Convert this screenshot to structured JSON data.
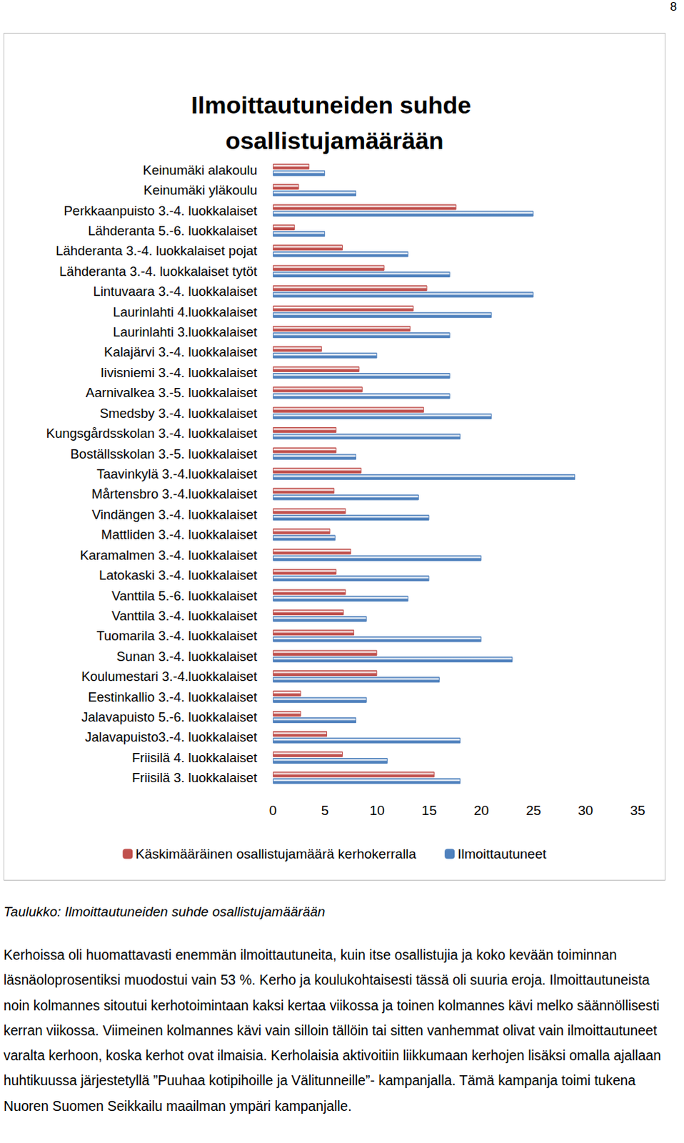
{
  "page_number": "8",
  "chart_data": {
    "type": "bar",
    "orientation": "horizontal",
    "title": "Ilmoittautuneiden suhde osallistujamäärään",
    "categories": [
      "Keinumäki alakoulu",
      "Keinumäki yläkoulu",
      "Perkkaanpuisto 3.-4. luokkalaiset",
      "Lähderanta 5.-6. luokkalaiset",
      "Lähderanta 3.-4. luokkalaiset pojat",
      "Lähderanta 3.-4. luokkalaiset tytöt",
      "Lintuvaara 3.-4. luokkalaiset",
      "Laurinlahti 4.luokkalaiset",
      "Laurinlahti 3.luokkalaiset",
      "Kalajärvi 3.-4. luokkalaiset",
      "Iivisniemi 3.-4. luokkalaiset",
      "Aarnivalkea 3.-5. luokkalaiset",
      "Smedsby 3.-4. luokkalaiset",
      "Kungsgårdsskolan 3.-4. luokkalaiset",
      "Boställsskolan 3.-5. luokkalaiset",
      "Taavinkylä 3.-4.luokkalaiset",
      "Mårtensbro 3.-4.luokkalaiset",
      "Vindängen 3.-4. luokkalaiset",
      "Mattliden 3.-4. luokkalaiset",
      "Karamalmen 3.-4. luokkalaiset",
      "Latokaski 3.-4. luokkalaiset",
      "Vanttila 5.-6. luokkalaiset",
      "Vanttila 3.-4. luokkalaiset",
      "Tuomarila 3.-4. luokkalaiset",
      "Sunan 3.-4. luokkalaiset",
      "Koulumestari 3.-4.luokkalaiset",
      "Eestinkallio 3.-4. luokkalaiset",
      "Jalavapuisto 5.-6. luokkalaiset",
      "Jalavapuisto3.-4. luokkalaiset",
      "Friisilä 4. luokkalaiset",
      "Friisilä 3. luokkalaiset"
    ],
    "series": [
      {
        "name": "Käskimääräinen osallistujamäärä kerhokerralla",
        "color": "#c0504d",
        "values": [
          3.5,
          2.5,
          17.6,
          2.1,
          6.7,
          10.7,
          14.8,
          13.5,
          13.2,
          4.7,
          8.3,
          8.6,
          14.5,
          6.1,
          6.1,
          8.5,
          5.9,
          7.0,
          5.5,
          7.5,
          6.1,
          7.0,
          6.8,
          7.8,
          10.0,
          10.0,
          2.7,
          2.7,
          5.2,
          6.7,
          15.5
        ]
      },
      {
        "name": "Ilmoittautuneet",
        "color": "#4f81bd",
        "values": [
          5,
          8,
          25,
          5,
          13,
          17,
          25,
          21,
          17,
          10,
          17,
          17,
          21,
          18,
          8,
          29,
          14,
          15,
          6,
          20,
          15,
          13,
          9,
          20,
          23,
          16,
          9,
          8,
          18,
          11,
          18
        ]
      }
    ],
    "xlim": [
      0,
      35
    ],
    "xticks": [
      0,
      5,
      10,
      15,
      20,
      25,
      30,
      35
    ],
    "grid": false,
    "legend": "bottom"
  },
  "caption": "Taulukko: Ilmoittautuneiden suhde osallistujamäärään",
  "paragraph": "Kerhoissa oli huomattavasti enemmän ilmoittautuneita, kuin itse osallistujia ja koko kevään toiminnan läsnäoloprosentiksi muodostui vain 53 %. Kerho ja koulukohtaisesti tässä oli suuria eroja. Ilmoittautuneista noin kolmannes sitoutui kerhotoimintaan kaksi kertaa viikossa ja toinen kolmannes kävi melko säännöllisesti kerran viikossa. Viimeinen kolmannes kävi vain silloin tällöin tai sitten vanhemmat olivat vain ilmoittautuneet varalta kerhoon, koska kerhot ovat ilmaisia. Kerholaisia aktivoitiin liikkumaan kerhojen lisäksi omalla ajallaan huhtikuussa järjestetyllä ”Puuhaa kotipihoille ja Välitunneille”- kampanjalla. Tämä kampanja toimi tukena Nuoren Suomen Seikkailu maailman ympäri kampanjalle."
}
